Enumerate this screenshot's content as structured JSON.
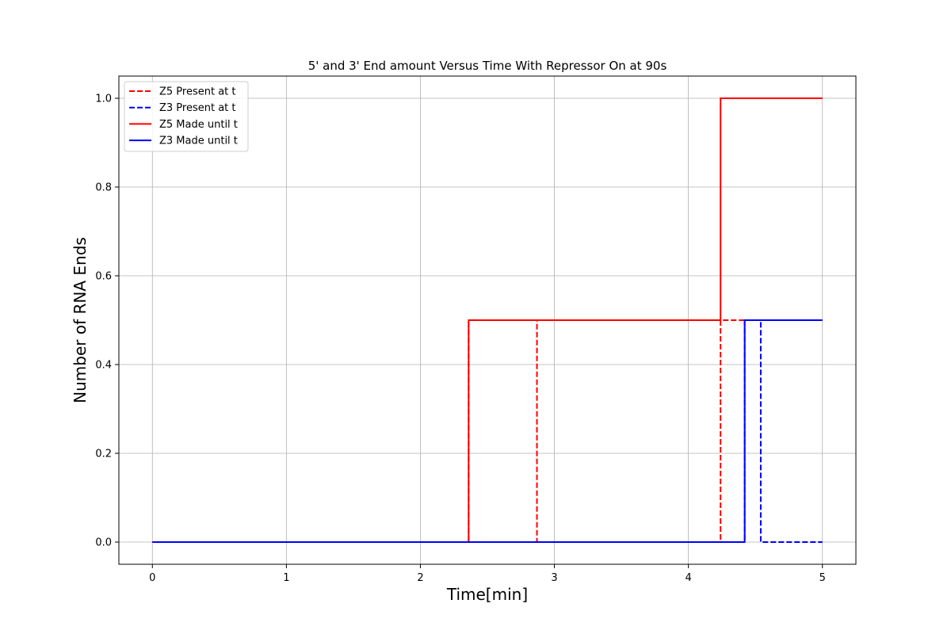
{
  "chart_data": {
    "type": "line",
    "step": "post",
    "title": "5' and 3' End amount Versus Time With Repressor On at 90s",
    "xlabel": "Time[min]",
    "ylabel": "Number of RNA Ends",
    "xlim": [
      -0.25,
      5.25
    ],
    "ylim": [
      -0.05,
      1.05
    ],
    "xticks": [
      0,
      1,
      2,
      3,
      4,
      5
    ],
    "xtick_labels": [
      "0",
      "1",
      "2",
      "3",
      "4",
      "5"
    ],
    "yticks": [
      0.0,
      0.2,
      0.4,
      0.6,
      0.8,
      1.0
    ],
    "ytick_labels": [
      "0.0",
      "0.2",
      "0.4",
      "0.6",
      "0.8",
      "1.0"
    ],
    "grid": true,
    "legend_position": "top-left",
    "series": [
      {
        "name": "Z5 Present at t",
        "color": "#ff0000",
        "linestyle": "dashed",
        "x": [
          0,
          2.36,
          2.87,
          4.24,
          4.42,
          4.54,
          5.0
        ],
        "y": [
          0.0,
          0.5,
          0.0,
          0.5,
          0.5,
          0.5,
          0.5
        ]
      },
      {
        "name": "Z3 Present at t",
        "color": "#0000ff",
        "linestyle": "dashed",
        "x": [
          0,
          4.42,
          4.54,
          5.0
        ],
        "y": [
          0.0,
          0.5,
          0.0,
          0.0
        ]
      },
      {
        "name": "Z5 Made until t",
        "color": "#ff0000",
        "linestyle": "solid",
        "x": [
          0,
          2.36,
          4.24,
          5.0
        ],
        "y": [
          0.0,
          0.5,
          1.0,
          1.0
        ]
      },
      {
        "name": "Z3 Made until t",
        "color": "#0000ff",
        "linestyle": "solid",
        "x": [
          0,
          4.42,
          5.0
        ],
        "y": [
          0.0,
          0.5,
          0.5
        ]
      }
    ]
  }
}
